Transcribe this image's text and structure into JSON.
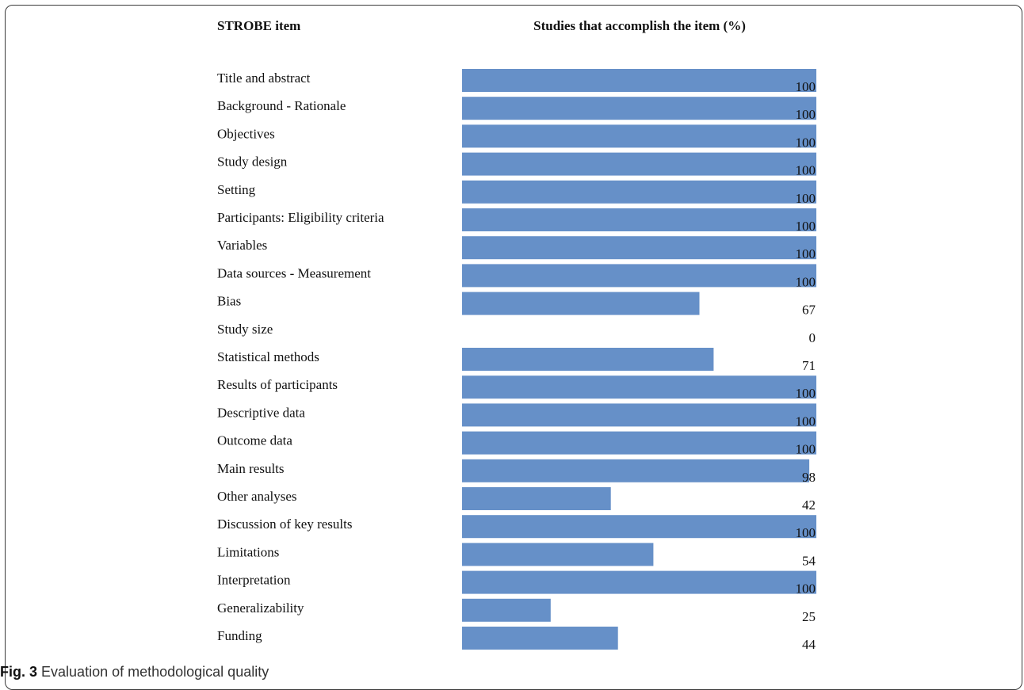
{
  "figure": {
    "caption_label": "Fig. 3",
    "caption_text": "Evaluation of methodological quality"
  },
  "chart_data": {
    "type": "bar",
    "orientation": "horizontal",
    "category_header": "STROBE item",
    "value_header": "Studies that accomplish the item (%)",
    "categories": [
      "Title and abstract",
      "Background - Rationale",
      "Objectives",
      "Study design",
      "Setting",
      "Participants: Eligibility criteria",
      "Variables",
      "Data sources - Measurement",
      "Bias",
      "Study size",
      "Statistical methods",
      "Results of participants",
      "Descriptive data",
      "Outcome data",
      "Main results",
      "Other analyses",
      "Discussion of key results",
      "Limitations",
      "Interpretation",
      "Generalizability",
      "Funding"
    ],
    "values": [
      100,
      100,
      100,
      100,
      100,
      100,
      100,
      100,
      67,
      0,
      71,
      100,
      100,
      100,
      98,
      42,
      100,
      54,
      100,
      25,
      44
    ],
    "xlim": [
      0,
      100
    ],
    "data_labels": true,
    "grid": false,
    "legend": "none",
    "bar_color": "#6690c8"
  }
}
